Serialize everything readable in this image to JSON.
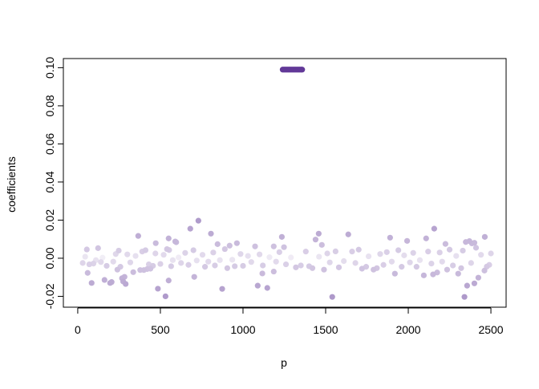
{
  "chart_data": {
    "type": "scatter",
    "title": "",
    "xlabel": "p",
    "ylabel": "coefficients",
    "xlim": [
      -87,
      2592
    ],
    "ylim": [
      -0.0257,
      0.1048
    ],
    "grid": false,
    "x_ticks": [
      0,
      500,
      1000,
      1500,
      2000,
      2500
    ],
    "x_tick_labels": [
      "0",
      "500",
      "1000",
      "1500",
      "2000",
      "2500"
    ],
    "y_ticks": [
      -0.02,
      0.0,
      0.02,
      0.04,
      0.06,
      0.08,
      0.1
    ],
    "y_tick_labels": [
      "-0.02",
      "0.00",
      "0.02",
      "0.04",
      "0.06",
      "0.08",
      "0.10"
    ],
    "color_scale": {
      "low": "#ffffff",
      "high": "#54278f"
    },
    "points": [
      [
        1240,
        0.099
      ],
      [
        1248,
        0.099
      ],
      [
        1256,
        0.099
      ],
      [
        1264,
        0.099
      ],
      [
        1272,
        0.099
      ],
      [
        1280,
        0.099
      ],
      [
        1288,
        0.099
      ],
      [
        1296,
        0.099
      ],
      [
        1304,
        0.099
      ],
      [
        1312,
        0.099
      ],
      [
        1320,
        0.099
      ],
      [
        1328,
        0.099
      ],
      [
        1336,
        0.099
      ],
      [
        1344,
        0.099
      ],
      [
        1352,
        0.099
      ],
      [
        1358,
        0.099
      ],
      [
        55,
        0.0046
      ],
      [
        123,
        0.0053
      ],
      [
        60,
        -0.0077
      ],
      [
        84,
        -0.013
      ],
      [
        162,
        -0.0114
      ],
      [
        196,
        -0.013
      ],
      [
        205,
        -0.0125
      ],
      [
        240,
        -0.006
      ],
      [
        248,
        0.004
      ],
      [
        268,
        -0.0105
      ],
      [
        283,
        -0.0098
      ],
      [
        290,
        -0.0135
      ],
      [
        275,
        -0.0122
      ],
      [
        336,
        -0.0073
      ],
      [
        366,
        0.0117
      ],
      [
        378,
        -0.0062
      ],
      [
        400,
        -0.0062
      ],
      [
        420,
        -0.0057
      ],
      [
        440,
        -0.0055
      ],
      [
        472,
        0.0079
      ],
      [
        485,
        -0.016
      ],
      [
        531,
        -0.02
      ],
      [
        550,
        0.0104
      ],
      [
        550,
        -0.0117
      ],
      [
        590,
        0.0088
      ],
      [
        596,
        0.0084
      ],
      [
        553,
        0.0043
      ],
      [
        681,
        0.0155
      ],
      [
        730,
        0.0197
      ],
      [
        705,
        -0.0098
      ],
      [
        806,
        0.0129
      ],
      [
        846,
        0.0074
      ],
      [
        874,
        -0.0161
      ],
      [
        919,
        0.0066
      ],
      [
        963,
        0.0079
      ],
      [
        1073,
        0.0062
      ],
      [
        1089,
        -0.0144
      ],
      [
        1117,
        -0.008
      ],
      [
        1147,
        -0.0156
      ],
      [
        1186,
        0.0062
      ],
      [
        1235,
        0.0112
      ],
      [
        1186,
        -0.007
      ],
      [
        1248,
        0.0058
      ],
      [
        1458,
        0.0129
      ],
      [
        1439,
        0.0098
      ],
      [
        1477,
        0.007
      ],
      [
        1540,
        -0.0203
      ],
      [
        1637,
        0.0125
      ],
      [
        1890,
        0.0108
      ],
      [
        1993,
        0.0091
      ],
      [
        1919,
        -0.0081
      ],
      [
        2094,
        -0.009
      ],
      [
        2108,
        0.0104
      ],
      [
        2157,
        0.0155
      ],
      [
        2150,
        -0.0085
      ],
      [
        2175,
        -0.0075
      ],
      [
        2225,
        0.0075
      ],
      [
        2235,
        -0.006
      ],
      [
        2302,
        -0.0081
      ],
      [
        2340,
        -0.0203
      ],
      [
        2356,
        -0.0144
      ],
      [
        2348,
        0.0085
      ],
      [
        2370,
        0.009
      ],
      [
        2385,
        0.0078
      ],
      [
        2400,
        0.0081
      ],
      [
        2400,
        -0.0132
      ],
      [
        2424,
        -0.0102
      ],
      [
        2463,
        0.0112
      ],
      [
        2461,
        -0.0065
      ],
      [
        2475,
        -0.0044
      ],
      [
        30,
        -0.0025
      ],
      [
        45,
        0.0008
      ],
      [
        70,
        -0.0032
      ],
      [
        95,
        -0.0028
      ],
      [
        110,
        -0.001
      ],
      [
        140,
        -0.002
      ],
      [
        150,
        0.0003
      ],
      [
        175,
        -0.004
      ],
      [
        215,
        -0.0018
      ],
      [
        230,
        0.0022
      ],
      [
        258,
        -0.0045
      ],
      [
        300,
        0.002
      ],
      [
        318,
        -0.0022
      ],
      [
        350,
        0.0012
      ],
      [
        390,
        0.0035
      ],
      [
        410,
        0.0042
      ],
      [
        430,
        -0.0032
      ],
      [
        455,
        -0.004
      ],
      [
        470,
        0.0025
      ],
      [
        500,
        -0.003
      ],
      [
        520,
        0.0018
      ],
      [
        540,
        0.0048
      ],
      [
        565,
        -0.0042
      ],
      [
        575,
        -0.001
      ],
      [
        610,
        0.0004
      ],
      [
        625,
        -0.0025
      ],
      [
        650,
        0.0028
      ],
      [
        670,
        -0.0035
      ],
      [
        700,
        0.0042
      ],
      [
        720,
        -0.0012
      ],
      [
        755,
        0.0018
      ],
      [
        770,
        -0.0045
      ],
      [
        790,
        -0.0018
      ],
      [
        820,
        0.003
      ],
      [
        830,
        -0.0038
      ],
      [
        860,
        -0.001
      ],
      [
        890,
        0.0048
      ],
      [
        905,
        -0.0052
      ],
      [
        935,
        -0.0008
      ],
      [
        950,
        -0.0042
      ],
      [
        985,
        0.0022
      ],
      [
        1000,
        -0.004
      ],
      [
        1030,
        0.0012
      ],
      [
        1050,
        -0.002
      ],
      [
        1100,
        0.002
      ],
      [
        1120,
        -0.0038
      ],
      [
        1160,
        0.0005
      ],
      [
        1200,
        -0.0018
      ],
      [
        1220,
        0.0032
      ],
      [
        1260,
        -0.0032
      ],
      [
        1290,
        0.0004
      ],
      [
        1320,
        -0.0048
      ],
      [
        1350,
        -0.0038
      ],
      [
        1380,
        0.0035
      ],
      [
        1400,
        -0.0042
      ],
      [
        1420,
        -0.0052
      ],
      [
        1460,
        0.0008
      ],
      [
        1490,
        -0.006
      ],
      [
        1510,
        0.0025
      ],
      [
        1525,
        -0.0022
      ],
      [
        1560,
        0.0036
      ],
      [
        1580,
        -0.0048
      ],
      [
        1610,
        -0.0015
      ],
      [
        1660,
        0.0035
      ],
      [
        1680,
        -0.0025
      ],
      [
        1700,
        0.0045
      ],
      [
        1720,
        -0.0055
      ],
      [
        1745,
        -0.0045
      ],
      [
        1760,
        0.001
      ],
      [
        1790,
        -0.006
      ],
      [
        1810,
        -0.0052
      ],
      [
        1830,
        0.0022
      ],
      [
        1850,
        -0.0035
      ],
      [
        1870,
        0.0032
      ],
      [
        1900,
        -0.0018
      ],
      [
        1940,
        0.0042
      ],
      [
        1960,
        -0.0045
      ],
      [
        1975,
        0.0015
      ],
      [
        2010,
        -0.0022
      ],
      [
        2030,
        0.0028
      ],
      [
        2050,
        -0.0045
      ],
      [
        2070,
        -0.001
      ],
      [
        2120,
        0.0035
      ],
      [
        2140,
        -0.0028
      ],
      [
        2190,
        0.003
      ],
      [
        2205,
        -0.0018
      ],
      [
        2250,
        0.0045
      ],
      [
        2270,
        -0.0038
      ],
      [
        2290,
        0.0012
      ],
      [
        2320,
        -0.0052
      ],
      [
        2330,
        0.004
      ],
      [
        2380,
        -0.0025
      ],
      [
        2410,
        0.0055
      ],
      [
        2440,
        0.0018
      ],
      [
        2490,
        -0.0035
      ],
      [
        2500,
        0.0025
      ]
    ]
  }
}
